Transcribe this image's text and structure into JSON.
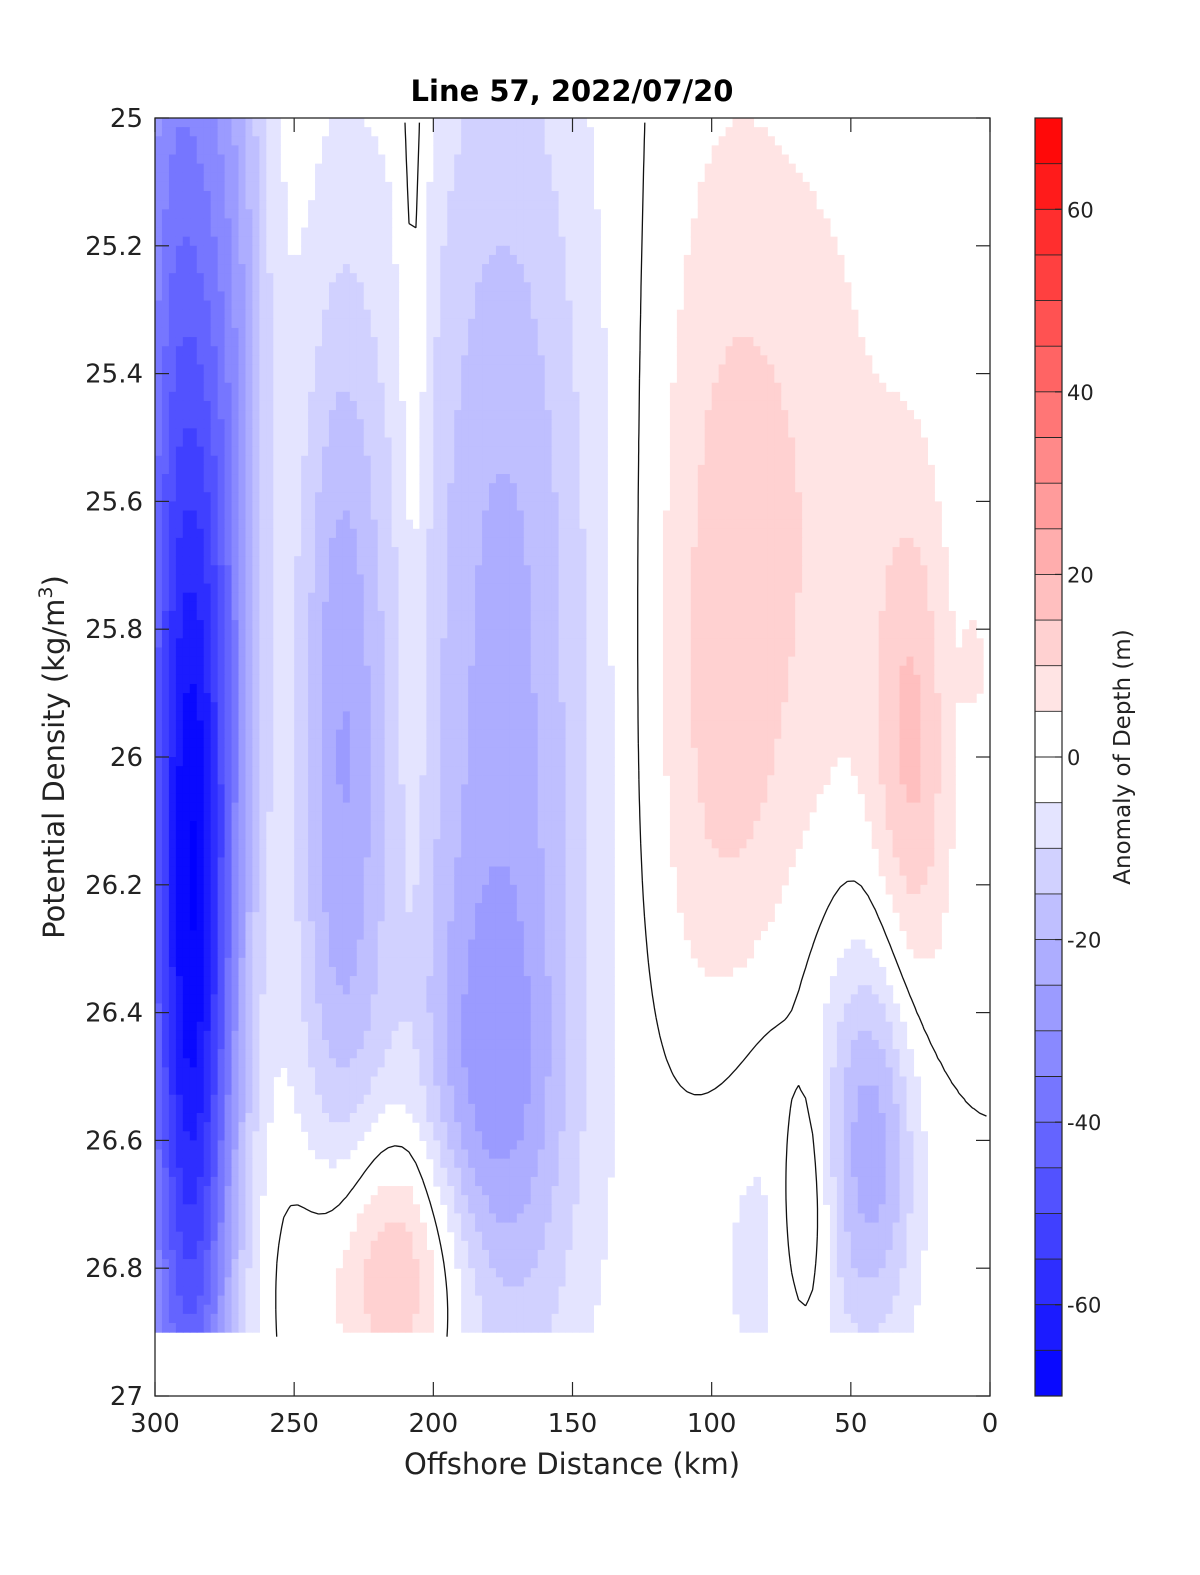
{
  "chart_data": {
    "type": "heatmap",
    "title": "Line 57, 2022/07/20",
    "xlabel": "Offshore Distance (km)",
    "ylabel_main": "Potential Density (kg/m",
    "ylabel_sup": "3",
    "ylabel_end": ")",
    "xlim": [
      300,
      0
    ],
    "ylim": [
      25,
      27
    ],
    "x_reversed": true,
    "y_reversed": true,
    "x_ticks": [
      300,
      250,
      200,
      150,
      100,
      50,
      0
    ],
    "x_tick_labels": [
      "300",
      "250",
      "200",
      "150",
      "100",
      "50",
      "0"
    ],
    "y_ticks": [
      25,
      25.2,
      25.4,
      25.6,
      25.8,
      26,
      26.2,
      26.4,
      26.6,
      26.8,
      27
    ],
    "y_tick_labels": [
      "25",
      "25.2",
      "25.4",
      "25.6",
      "25.8",
      "26",
      "26.2",
      "26.4",
      "26.6",
      "26.8",
      "27"
    ],
    "colorbar": {
      "label": "Anomaly of Depth (m)",
      "min": -70,
      "max": 70,
      "step": 5,
      "ticks": [
        -60,
        -40,
        -20,
        0,
        20,
        40,
        60
      ],
      "tick_labels": [
        "-60",
        "-40",
        "-20",
        "0",
        "20",
        "40",
        "60"
      ],
      "color_negative": "#0000ff",
      "color_zero": "#ffffff",
      "color_positive": "#ff0000"
    },
    "data_extent": {
      "density_max": 26.9
    },
    "grid": false,
    "contour_levels": [
      0
    ],
    "features": [
      {
        "x": 292,
        "y": 25.8,
        "amp": -40,
        "sx": 14,
        "sy": 1.2
      },
      {
        "x": 285,
        "y": 26.3,
        "amp": -35,
        "sx": 10,
        "sy": 0.55
      },
      {
        "x": 270,
        "y": 25.4,
        "amp": -15,
        "sx": 9,
        "sy": 0.7
      },
      {
        "x": 233,
        "y": 26.0,
        "amp": -24,
        "sx": 12,
        "sy": 0.55
      },
      {
        "x": 175,
        "y": 25.9,
        "amp": -22,
        "sx": 24,
        "sy": 0.8
      },
      {
        "x": 180,
        "y": 26.55,
        "amp": -14,
        "sx": 18,
        "sy": 0.25
      },
      {
        "x": 215,
        "y": 26.8,
        "amp": 20,
        "sx": 22,
        "sy": 0.16
      },
      {
        "x": 207,
        "y": 25.2,
        "amp": 7,
        "sx": 4,
        "sy": 0.7
      },
      {
        "x": 96,
        "y": 25.9,
        "amp": 12,
        "sx": 18,
        "sy": 0.6
      },
      {
        "x": 62,
        "y": 25.6,
        "amp": 7,
        "sx": 22,
        "sy": 0.45
      },
      {
        "x": 28,
        "y": 26.0,
        "amp": 15,
        "sx": 10,
        "sy": 0.3
      },
      {
        "x": 42,
        "y": 26.6,
        "amp": -22,
        "sx": 12,
        "sy": 0.22
      },
      {
        "x": 85,
        "y": 26.7,
        "amp": -10,
        "sx": 24,
        "sy": 0.3
      },
      {
        "x": 66,
        "y": 26.7,
        "amp": 12,
        "sx": 7,
        "sy": 0.15
      },
      {
        "x": 5,
        "y": 25.85,
        "amp": 5,
        "sx": 4,
        "sy": 0.08
      }
    ]
  }
}
